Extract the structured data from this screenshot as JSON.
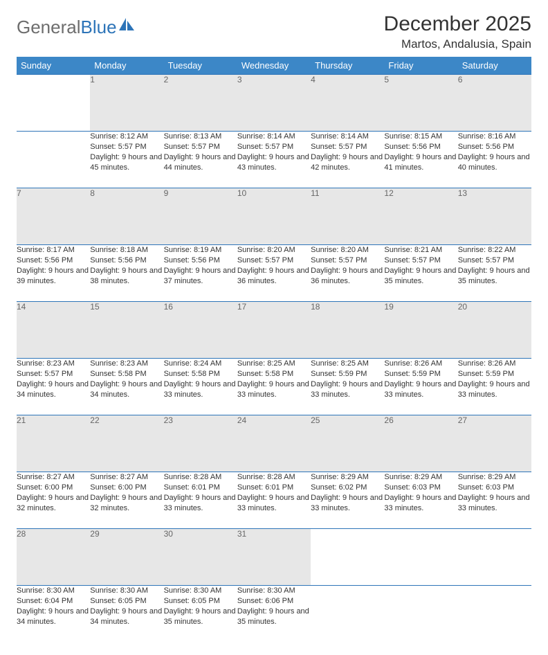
{
  "logo": {
    "text_gray": "General",
    "text_blue": "Blue"
  },
  "title": "December 2025",
  "location": "Martos, Andalusia, Spain",
  "colors": {
    "header_bg": "#3c87c7",
    "header_text": "#ffffff",
    "daynum_bg": "#e7e7e7",
    "daynum_text": "#666666",
    "border": "#2d74b8",
    "body_text": "#333333",
    "logo_gray": "#6d6d6d",
    "logo_blue": "#2d74b8"
  },
  "weekdays": [
    "Sunday",
    "Monday",
    "Tuesday",
    "Wednesday",
    "Thursday",
    "Friday",
    "Saturday"
  ],
  "weeks": [
    [
      null,
      {
        "day": "1",
        "sunrise": "Sunrise: 8:12 AM",
        "sunset": "Sunset: 5:57 PM",
        "daylight": "Daylight: 9 hours and 45 minutes."
      },
      {
        "day": "2",
        "sunrise": "Sunrise: 8:13 AM",
        "sunset": "Sunset: 5:57 PM",
        "daylight": "Daylight: 9 hours and 44 minutes."
      },
      {
        "day": "3",
        "sunrise": "Sunrise: 8:14 AM",
        "sunset": "Sunset: 5:57 PM",
        "daylight": "Daylight: 9 hours and 43 minutes."
      },
      {
        "day": "4",
        "sunrise": "Sunrise: 8:14 AM",
        "sunset": "Sunset: 5:57 PM",
        "daylight": "Daylight: 9 hours and 42 minutes."
      },
      {
        "day": "5",
        "sunrise": "Sunrise: 8:15 AM",
        "sunset": "Sunset: 5:56 PM",
        "daylight": "Daylight: 9 hours and 41 minutes."
      },
      {
        "day": "6",
        "sunrise": "Sunrise: 8:16 AM",
        "sunset": "Sunset: 5:56 PM",
        "daylight": "Daylight: 9 hours and 40 minutes."
      }
    ],
    [
      {
        "day": "7",
        "sunrise": "Sunrise: 8:17 AM",
        "sunset": "Sunset: 5:56 PM",
        "daylight": "Daylight: 9 hours and 39 minutes."
      },
      {
        "day": "8",
        "sunrise": "Sunrise: 8:18 AM",
        "sunset": "Sunset: 5:56 PM",
        "daylight": "Daylight: 9 hours and 38 minutes."
      },
      {
        "day": "9",
        "sunrise": "Sunrise: 8:19 AM",
        "sunset": "Sunset: 5:56 PM",
        "daylight": "Daylight: 9 hours and 37 minutes."
      },
      {
        "day": "10",
        "sunrise": "Sunrise: 8:20 AM",
        "sunset": "Sunset: 5:57 PM",
        "daylight": "Daylight: 9 hours and 36 minutes."
      },
      {
        "day": "11",
        "sunrise": "Sunrise: 8:20 AM",
        "sunset": "Sunset: 5:57 PM",
        "daylight": "Daylight: 9 hours and 36 minutes."
      },
      {
        "day": "12",
        "sunrise": "Sunrise: 8:21 AM",
        "sunset": "Sunset: 5:57 PM",
        "daylight": "Daylight: 9 hours and 35 minutes."
      },
      {
        "day": "13",
        "sunrise": "Sunrise: 8:22 AM",
        "sunset": "Sunset: 5:57 PM",
        "daylight": "Daylight: 9 hours and 35 minutes."
      }
    ],
    [
      {
        "day": "14",
        "sunrise": "Sunrise: 8:23 AM",
        "sunset": "Sunset: 5:57 PM",
        "daylight": "Daylight: 9 hours and 34 minutes."
      },
      {
        "day": "15",
        "sunrise": "Sunrise: 8:23 AM",
        "sunset": "Sunset: 5:58 PM",
        "daylight": "Daylight: 9 hours and 34 minutes."
      },
      {
        "day": "16",
        "sunrise": "Sunrise: 8:24 AM",
        "sunset": "Sunset: 5:58 PM",
        "daylight": "Daylight: 9 hours and 33 minutes."
      },
      {
        "day": "17",
        "sunrise": "Sunrise: 8:25 AM",
        "sunset": "Sunset: 5:58 PM",
        "daylight": "Daylight: 9 hours and 33 minutes."
      },
      {
        "day": "18",
        "sunrise": "Sunrise: 8:25 AM",
        "sunset": "Sunset: 5:59 PM",
        "daylight": "Daylight: 9 hours and 33 minutes."
      },
      {
        "day": "19",
        "sunrise": "Sunrise: 8:26 AM",
        "sunset": "Sunset: 5:59 PM",
        "daylight": "Daylight: 9 hours and 33 minutes."
      },
      {
        "day": "20",
        "sunrise": "Sunrise: 8:26 AM",
        "sunset": "Sunset: 5:59 PM",
        "daylight": "Daylight: 9 hours and 33 minutes."
      }
    ],
    [
      {
        "day": "21",
        "sunrise": "Sunrise: 8:27 AM",
        "sunset": "Sunset: 6:00 PM",
        "daylight": "Daylight: 9 hours and 32 minutes."
      },
      {
        "day": "22",
        "sunrise": "Sunrise: 8:27 AM",
        "sunset": "Sunset: 6:00 PM",
        "daylight": "Daylight: 9 hours and 32 minutes."
      },
      {
        "day": "23",
        "sunrise": "Sunrise: 8:28 AM",
        "sunset": "Sunset: 6:01 PM",
        "daylight": "Daylight: 9 hours and 33 minutes."
      },
      {
        "day": "24",
        "sunrise": "Sunrise: 8:28 AM",
        "sunset": "Sunset: 6:01 PM",
        "daylight": "Daylight: 9 hours and 33 minutes."
      },
      {
        "day": "25",
        "sunrise": "Sunrise: 8:29 AM",
        "sunset": "Sunset: 6:02 PM",
        "daylight": "Daylight: 9 hours and 33 minutes."
      },
      {
        "day": "26",
        "sunrise": "Sunrise: 8:29 AM",
        "sunset": "Sunset: 6:03 PM",
        "daylight": "Daylight: 9 hours and 33 minutes."
      },
      {
        "day": "27",
        "sunrise": "Sunrise: 8:29 AM",
        "sunset": "Sunset: 6:03 PM",
        "daylight": "Daylight: 9 hours and 33 minutes."
      }
    ],
    [
      {
        "day": "28",
        "sunrise": "Sunrise: 8:30 AM",
        "sunset": "Sunset: 6:04 PM",
        "daylight": "Daylight: 9 hours and 34 minutes."
      },
      {
        "day": "29",
        "sunrise": "Sunrise: 8:30 AM",
        "sunset": "Sunset: 6:05 PM",
        "daylight": "Daylight: 9 hours and 34 minutes."
      },
      {
        "day": "30",
        "sunrise": "Sunrise: 8:30 AM",
        "sunset": "Sunset: 6:05 PM",
        "daylight": "Daylight: 9 hours and 35 minutes."
      },
      {
        "day": "31",
        "sunrise": "Sunrise: 8:30 AM",
        "sunset": "Sunset: 6:06 PM",
        "daylight": "Daylight: 9 hours and 35 minutes."
      },
      null,
      null,
      null
    ]
  ]
}
